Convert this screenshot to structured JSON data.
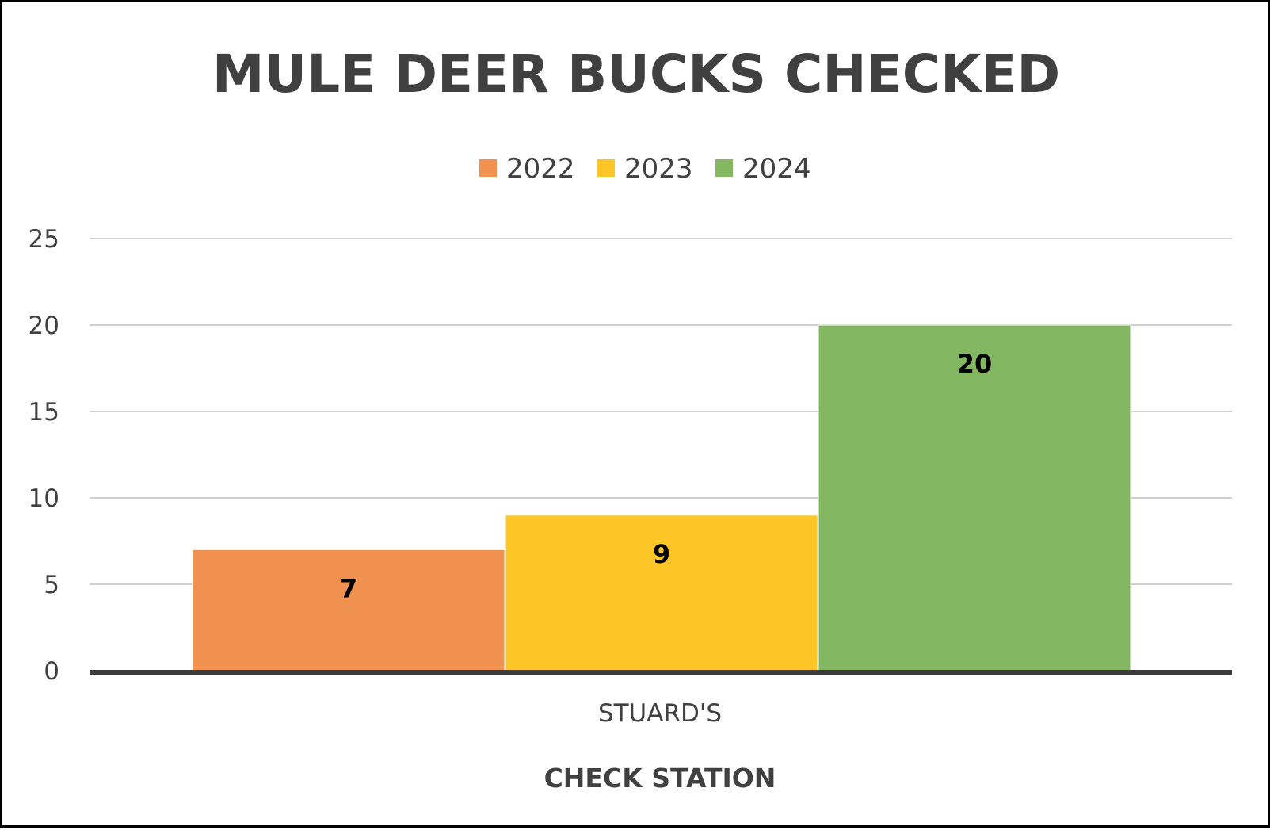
{
  "chart_data": {
    "type": "bar",
    "title": "MULE DEER BUCKS CHECKED",
    "xlabel": "CHECK STATION",
    "ylabel": "",
    "categories": [
      "STUARD'S"
    ],
    "series": [
      {
        "name": "2022",
        "values": [
          7
        ],
        "color": "#F0914F"
      },
      {
        "name": "2023",
        "values": [
          9
        ],
        "color": "#FEC526"
      },
      {
        "name": "2024",
        "values": [
          20
        ],
        "color": "#83B761"
      }
    ],
    "ylim": [
      0,
      25
    ],
    "yticks": [
      "0",
      "5",
      "10",
      "15",
      "20",
      "25"
    ],
    "grid": true,
    "gridline_color": "#D0D0D0",
    "axis_color": "#3C3C3C",
    "legend": "top-center",
    "data_labels": true
  }
}
